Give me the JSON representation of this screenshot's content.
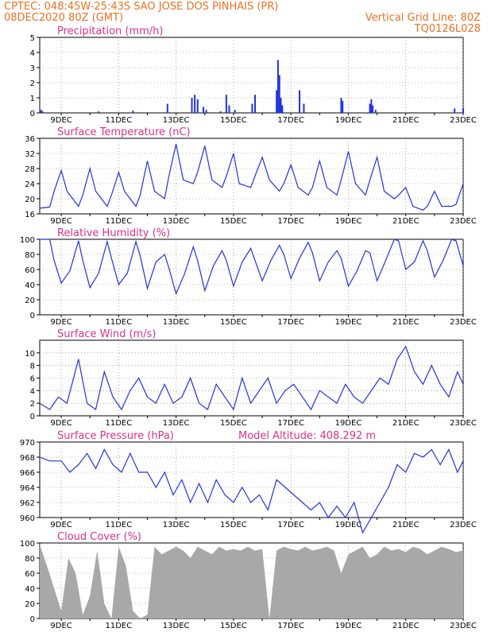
{
  "header": {
    "line1": "CPTEC:   048:45W-25:43S   SAO JOSE DOS PINHAIS (PR)",
    "line2_left": "08DEC2020 80Z (GMT)",
    "line2_right": "Vertical Grid Line: 80Z",
    "line3_right": "TQ0126L028"
  },
  "colors": {
    "header": "#f07020",
    "title": "#e0308a",
    "line": "#2233dd",
    "cloud": "#a8a8a8",
    "grid": "#777777"
  },
  "x_axis": {
    "labels": [
      "9DEC",
      "11DEC",
      "13DEC",
      "15DEC",
      "17DEC",
      "19DEC",
      "21DEC",
      "23DEC"
    ],
    "label_days": [
      9,
      11,
      13,
      15,
      17,
      19,
      21,
      23
    ],
    "range_days": [
      8.25,
      23.0
    ]
  },
  "chart_data": [
    {
      "type": "bar",
      "id": "precip",
      "title": "Precipitation (mm/h)",
      "ylim": [
        0,
        5
      ],
      "yticks": [
        0,
        1,
        2,
        3,
        4,
        5
      ],
      "x": [
        8.3,
        8.35,
        10.3,
        11.5,
        12.7,
        13.55,
        13.65,
        13.75,
        13.95,
        14.05,
        14.55,
        14.75,
        14.85,
        15.05,
        15.65,
        15.75,
        16.5,
        16.55,
        16.6,
        16.65,
        16.7,
        17.3,
        17.45,
        18.75,
        18.8,
        19.75,
        19.8,
        19.85,
        19.95,
        22.7,
        23.0
      ],
      "values": [
        0.2,
        0.1,
        0.1,
        0.15,
        0.6,
        1.0,
        1.2,
        0.9,
        0.4,
        0.2,
        0.1,
        1.2,
        0.5,
        0.2,
        0.6,
        1.2,
        1.5,
        3.5,
        2.5,
        1.0,
        0.5,
        1.5,
        0.6,
        1.0,
        0.8,
        0.6,
        0.9,
        0.5,
        0.2,
        0.3,
        0.3
      ]
    },
    {
      "type": "line",
      "id": "temp",
      "title": "Surface Temperature (nC)",
      "ylim": [
        16,
        36
      ],
      "yticks": [
        16,
        20,
        24,
        28,
        32,
        36
      ],
      "x": [
        8.25,
        8.6,
        8.75,
        9.0,
        9.2,
        9.6,
        9.75,
        10.0,
        10.2,
        10.6,
        10.75,
        11.0,
        11.2,
        11.6,
        11.75,
        12.0,
        12.25,
        12.6,
        12.75,
        13.0,
        13.25,
        13.6,
        13.75,
        14.0,
        14.25,
        14.6,
        14.75,
        15.0,
        15.2,
        15.6,
        15.75,
        16.0,
        16.25,
        16.6,
        16.75,
        17.0,
        17.25,
        17.6,
        17.75,
        18.0,
        18.25,
        18.6,
        18.75,
        19.0,
        19.25,
        19.6,
        19.75,
        20.0,
        20.25,
        20.6,
        20.75,
        21.0,
        21.25,
        21.6,
        21.75,
        22.0,
        22.25,
        22.6,
        22.75,
        23.0
      ],
      "values": [
        17.5,
        17.8,
        22,
        27.5,
        22,
        18,
        21,
        28,
        22,
        18,
        21,
        27,
        22,
        18,
        21,
        30,
        22,
        20,
        26,
        34.5,
        25,
        24,
        27,
        34,
        25,
        23,
        26,
        32,
        24,
        23,
        26,
        31,
        25,
        22,
        24,
        29,
        23,
        21,
        23,
        30,
        23,
        21,
        25,
        32.5,
        24,
        21,
        25,
        31,
        22,
        20,
        21,
        23,
        18,
        17,
        18,
        22,
        18,
        18,
        18.5,
        24
      ]
    },
    {
      "type": "line",
      "id": "rh",
      "title": "Relative Humidity (%)",
      "ylim": [
        0,
        100
      ],
      "yticks": [
        0,
        20,
        40,
        60,
        80,
        100
      ],
      "x": [
        8.25,
        8.6,
        8.75,
        9.0,
        9.3,
        9.6,
        9.75,
        10.0,
        10.3,
        10.6,
        10.75,
        11.0,
        11.3,
        11.6,
        11.75,
        12.0,
        12.3,
        12.6,
        12.75,
        13.0,
        13.3,
        13.6,
        13.75,
        14.0,
        14.3,
        14.6,
        14.75,
        15.0,
        15.3,
        15.6,
        15.75,
        16.0,
        16.3,
        16.6,
        16.75,
        17.0,
        17.3,
        17.6,
        17.75,
        18.0,
        18.3,
        18.6,
        18.75,
        19.0,
        19.3,
        19.6,
        19.75,
        20.0,
        20.3,
        20.6,
        20.75,
        21.0,
        21.3,
        21.6,
        21.75,
        22.0,
        22.3,
        22.6,
        22.75,
        23.0
      ],
      "values": [
        100,
        100,
        72,
        42,
        58,
        98,
        72,
        36,
        55,
        97,
        75,
        40,
        55,
        97,
        78,
        35,
        70,
        80,
        62,
        28,
        55,
        90,
        72,
        32,
        65,
        85,
        72,
        38,
        70,
        88,
        72,
        45,
        72,
        92,
        80,
        48,
        75,
        96,
        82,
        45,
        70,
        85,
        75,
        38,
        58,
        85,
        82,
        45,
        72,
        100,
        98,
        60,
        70,
        98,
        85,
        50,
        72,
        100,
        98,
        65
      ]
    },
    {
      "type": "line",
      "id": "wind",
      "title": "Surface Wind (m/s)",
      "ylim": [
        0,
        12
      ],
      "yticks": [
        0,
        2,
        4,
        6,
        8,
        10
      ],
      "x": [
        8.25,
        8.6,
        8.9,
        9.2,
        9.6,
        9.9,
        10.2,
        10.5,
        10.8,
        11.1,
        11.4,
        11.7,
        12.0,
        12.3,
        12.6,
        12.9,
        13.2,
        13.5,
        13.8,
        14.1,
        14.4,
        14.7,
        15.0,
        15.3,
        15.6,
        15.9,
        16.2,
        16.5,
        16.8,
        17.1,
        17.4,
        17.7,
        18.0,
        18.3,
        18.6,
        18.9,
        19.2,
        19.5,
        19.8,
        20.1,
        20.4,
        20.7,
        21.0,
        21.3,
        21.6,
        21.9,
        22.2,
        22.5,
        22.8,
        23.0
      ],
      "values": [
        2,
        1,
        3,
        2,
        9,
        2,
        1,
        7,
        3,
        1,
        4,
        6,
        3,
        2,
        5,
        2,
        3,
        6,
        2,
        1,
        5,
        3,
        1,
        6,
        2,
        4,
        6,
        2,
        4,
        5,
        3,
        1,
        4,
        3,
        2,
        5,
        3,
        2,
        4,
        6,
        5,
        9,
        11,
        7,
        5,
        8,
        5,
        3,
        7,
        5
      ]
    },
    {
      "type": "line",
      "id": "press",
      "title": "Surface Pressure (hPa)",
      "note": "Model Altitude: 408.292 m",
      "ylim": [
        960,
        970
      ],
      "yticks": [
        960,
        962,
        964,
        966,
        968,
        970
      ],
      "x": [
        8.25,
        8.6,
        9.0,
        9.3,
        9.6,
        9.9,
        10.2,
        10.5,
        10.8,
        11.1,
        11.4,
        11.7,
        12.0,
        12.3,
        12.6,
        12.9,
        13.2,
        13.5,
        13.8,
        14.1,
        14.4,
        14.7,
        15.0,
        15.3,
        15.6,
        15.9,
        16.2,
        16.5,
        16.8,
        17.1,
        17.4,
        17.7,
        18.0,
        18.3,
        18.6,
        18.9,
        19.2,
        19.5,
        19.8,
        20.1,
        20.4,
        20.7,
        21.0,
        21.3,
        21.6,
        21.9,
        22.2,
        22.5,
        22.8,
        23.0
      ],
      "values": [
        968,
        967.5,
        967.5,
        966,
        967,
        968.5,
        966.5,
        969,
        967,
        966,
        968.5,
        966,
        966,
        964,
        966,
        963,
        965,
        962,
        964.5,
        962,
        965,
        963,
        962,
        964,
        962,
        963,
        961,
        965,
        964,
        963,
        962,
        961,
        962,
        960,
        961.5,
        960,
        962,
        958,
        960,
        962,
        964,
        967,
        966,
        968.5,
        968,
        969,
        967,
        969,
        966,
        967.5
      ]
    },
    {
      "type": "area",
      "id": "cloud",
      "title": "Cloud Cover (%)",
      "ylim": [
        0,
        100
      ],
      "yticks": [
        0,
        20,
        40,
        60,
        80,
        100
      ],
      "x": [
        8.25,
        8.5,
        8.75,
        9.0,
        9.25,
        9.5,
        9.75,
        10.0,
        10.25,
        10.5,
        10.75,
        11.0,
        11.25,
        11.5,
        11.75,
        12.0,
        12.25,
        12.5,
        12.75,
        13.0,
        13.25,
        13.5,
        13.75,
        14.0,
        14.25,
        14.5,
        14.75,
        15.0,
        15.25,
        15.5,
        15.75,
        16.0,
        16.25,
        16.5,
        16.75,
        17.0,
        17.25,
        17.5,
        17.75,
        18.0,
        18.25,
        18.5,
        18.75,
        19.0,
        19.25,
        19.5,
        19.75,
        20.0,
        20.25,
        20.5,
        20.75,
        21.0,
        21.25,
        21.5,
        21.75,
        22.0,
        22.25,
        22.5,
        22.75,
        23.0
      ],
      "values": [
        98,
        70,
        40,
        10,
        80,
        60,
        5,
        30,
        90,
        20,
        0,
        95,
        70,
        10,
        0,
        5,
        95,
        85,
        90,
        95,
        90,
        80,
        95,
        90,
        85,
        95,
        90,
        92,
        90,
        95,
        90,
        92,
        0,
        90,
        95,
        92,
        90,
        95,
        90,
        92,
        95,
        90,
        60,
        85,
        90,
        95,
        80,
        85,
        95,
        90,
        92,
        88,
        95,
        92,
        85,
        90,
        95,
        92,
        88,
        90
      ]
    }
  ]
}
